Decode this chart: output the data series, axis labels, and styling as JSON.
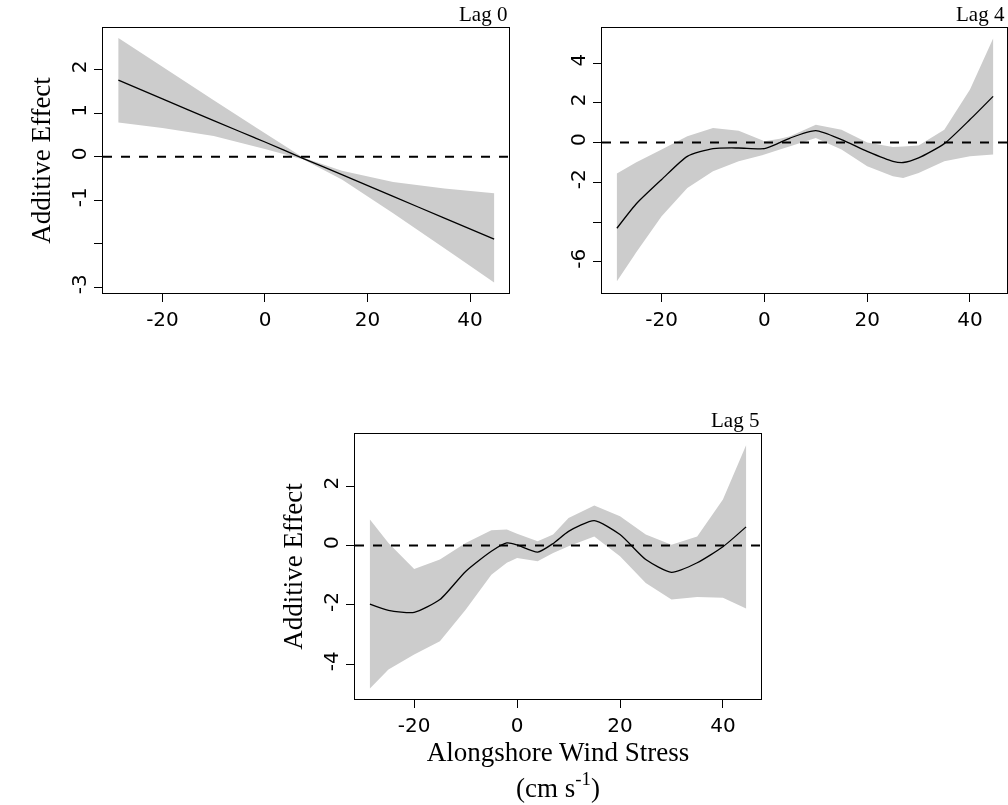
{
  "chart_data": [
    {
      "type": "line",
      "title": "Lag 0",
      "ylabel": "Additive Effect",
      "xlim": [
        -31.6,
        47.6
      ],
      "xticks": [
        -20,
        0,
        20,
        40
      ],
      "ylim": [
        -3.13,
        2.96
      ],
      "yticks": [
        -3,
        {
          "value": -2,
          "label": null
        },
        -1,
        0,
        1,
        2
      ],
      "marker": "none",
      "line_style": "solid",
      "series": [
        {
          "color": "#000000",
          "x": [
            -28.6,
            -20,
            -10,
            0,
            7.5,
            15,
            25,
            35,
            44.7
          ],
          "values": [
            1.76,
            1.33,
            0.83,
            0.34,
            -0.04,
            -0.41,
            -0.91,
            -1.41,
            -1.89
          ],
          "lower": [
            0.79,
            0.66,
            0.48,
            0.18,
            -0.06,
            -0.52,
            -1.3,
            -2.1,
            -2.89
          ],
          "upper": [
            2.73,
            2.07,
            1.3,
            0.54,
            -0.02,
            -0.32,
            -0.58,
            -0.73,
            -0.84
          ]
        }
      ],
      "ref_lines": [
        {
          "axis": "y",
          "value": 0,
          "line_style": "dashed",
          "color": "#000000"
        }
      ]
    },
    {
      "type": "line",
      "title": "Lag 4",
      "xlim": [
        -31.6,
        47.2
      ],
      "xticks": [
        -20,
        0,
        20,
        40
      ],
      "ylim": [
        -7.57,
        5.77
      ],
      "yticks": [
        -6,
        {
          "value": -4,
          "label": null
        },
        -2,
        0,
        2,
        4
      ],
      "marker": "none",
      "line_style": "solid",
      "series": [
        {
          "color": "#000000",
          "x": [
            -28.7,
            -25,
            -20,
            -15,
            -10,
            -5,
            0,
            3,
            5,
            10,
            15,
            20,
            25,
            27,
            30,
            35,
            40,
            44.5
          ],
          "values": [
            -4.31,
            -3.1,
            -1.86,
            -0.69,
            -0.3,
            -0.27,
            -0.3,
            0.0,
            0.23,
            0.6,
            0.15,
            -0.44,
            -0.94,
            -1.0,
            -0.77,
            -0.05,
            1.16,
            2.33
          ],
          "lower": [
            -6.98,
            -5.55,
            -3.71,
            -2.28,
            -1.44,
            -0.94,
            -0.6,
            -0.35,
            -0.18,
            0.23,
            -0.35,
            -1.19,
            -1.69,
            -1.78,
            -1.53,
            -0.94,
            -0.69,
            -0.6
          ],
          "upper": [
            -1.56,
            -1.0,
            -0.35,
            0.32,
            0.74,
            0.6,
            0.07,
            0.2,
            0.32,
            0.9,
            0.65,
            0.0,
            -0.22,
            -0.2,
            -0.15,
            0.65,
            2.67,
            5.24
          ]
        }
      ],
      "ref_lines": [
        {
          "axis": "y",
          "value": 0,
          "line_style": "dashed",
          "color": "#000000"
        }
      ]
    },
    {
      "type": "line",
      "title": "Lag 5",
      "ylabel": "Additive Effect",
      "xlabel": "Alongshore Wind Stress\n(cm s$^{-1}$)",
      "xlim": [
        -31.5,
        47.4
      ],
      "xticks": [
        -20,
        0,
        20,
        40
      ],
      "ylim": [
        -5.17,
        3.76
      ],
      "yticks": [
        -4,
        -2,
        0,
        2
      ],
      "marker": "none",
      "line_style": "solid",
      "series": [
        {
          "color": "#000000",
          "x": [
            -28.6,
            -25,
            -20,
            -15,
            -10,
            -5,
            -2,
            0,
            4,
            7,
            10,
            15,
            20,
            25,
            30,
            35,
            40,
            44.5
          ],
          "values": [
            -1.97,
            -2.18,
            -2.25,
            -1.82,
            -0.87,
            -0.19,
            0.09,
            0.02,
            -0.22,
            0.07,
            0.48,
            0.84,
            0.37,
            -0.47,
            -0.9,
            -0.58,
            -0.04,
            0.63
          ],
          "lower": [
            -4.82,
            -4.18,
            -3.67,
            -3.22,
            -2.16,
            -0.98,
            -0.58,
            -0.42,
            -0.53,
            -0.25,
            -0.02,
            0.31,
            -0.36,
            -1.26,
            -1.82,
            -1.73,
            -1.76,
            -2.12
          ],
          "upper": [
            0.88,
            0.09,
            -0.79,
            -0.47,
            0.09,
            0.52,
            0.54,
            0.4,
            0.15,
            0.37,
            0.93,
            1.35,
            0.99,
            0.37,
            0.03,
            0.31,
            1.55,
            3.38
          ]
        }
      ],
      "ref_lines": [
        {
          "axis": "y",
          "value": 0,
          "line_style": "dashed",
          "color": "#000000"
        }
      ]
    }
  ]
}
